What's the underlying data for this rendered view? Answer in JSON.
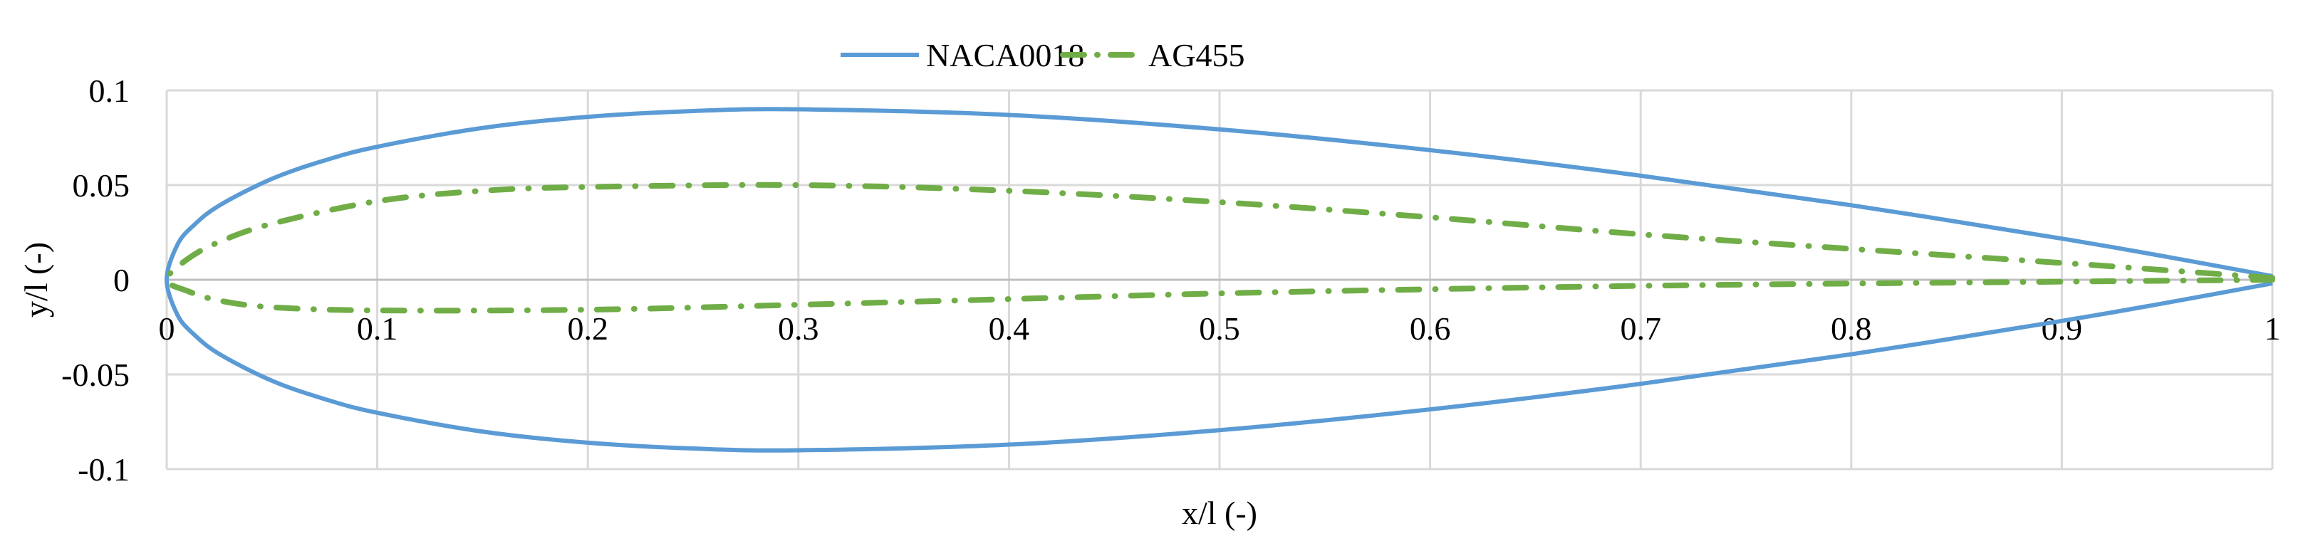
{
  "chart_data": {
    "type": "line",
    "title": "",
    "xlabel": "x/l (-)",
    "ylabel": "y/l (-)",
    "xlim": [
      0,
      1
    ],
    "ylim": [
      -0.1,
      0.1
    ],
    "xticks": [
      0,
      0.1,
      0.2,
      0.3,
      0.4,
      0.5,
      0.6,
      0.7,
      0.8,
      0.9,
      1
    ],
    "xtick_labels": [
      "0",
      "0.1",
      "0.2",
      "0.3",
      "0.4",
      "0.5",
      "0.6",
      "0.7",
      "0.8",
      "0.9",
      "1"
    ],
    "yticks": [
      0.1,
      0.05,
      0,
      -0.05,
      -0.1
    ],
    "ytick_labels": [
      "0.1",
      "0.05",
      "0",
      "-0.05",
      "-0.1"
    ],
    "grid": true,
    "legend_placement": "top-center",
    "series": [
      {
        "name": "NACA0018",
        "color": "#5B9BD5",
        "style": "solid",
        "upper": {
          "x": [
            0,
            0.005,
            0.0125,
            0.025,
            0.05,
            0.075,
            0.1,
            0.15,
            0.2,
            0.25,
            0.3,
            0.4,
            0.5,
            0.6,
            0.7,
            0.8,
            0.9,
            0.95,
            1.0
          ],
          "y": [
            0,
            0.0183,
            0.02841,
            0.03922,
            0.05332,
            0.063,
            0.07024,
            0.08018,
            0.08606,
            0.08912,
            0.09003,
            0.08705,
            0.07941,
            0.06845,
            0.05496,
            0.03935,
            0.02172,
            0.0121,
            0.00189
          ]
        },
        "lower": {
          "x": [
            0,
            0.005,
            0.0125,
            0.025,
            0.05,
            0.075,
            0.1,
            0.15,
            0.2,
            0.25,
            0.3,
            0.4,
            0.5,
            0.6,
            0.7,
            0.8,
            0.9,
            0.95,
            1.0
          ],
          "y": [
            0,
            -0.0183,
            -0.02841,
            -0.03922,
            -0.05332,
            -0.063,
            -0.07024,
            -0.08018,
            -0.08606,
            -0.08912,
            -0.09003,
            -0.08705,
            -0.07941,
            -0.06845,
            -0.05496,
            -0.03935,
            -0.02172,
            -0.0121,
            -0.00189
          ]
        }
      },
      {
        "name": "AG455",
        "color": "#70AD47",
        "style": "dash-dot",
        "upper": {
          "x": [
            0,
            0.01,
            0.025,
            0.05,
            0.1,
            0.15,
            0.2,
            0.3,
            0.4,
            0.5,
            0.6,
            0.7,
            0.8,
            0.9,
            0.95,
            1.0
          ],
          "y": [
            0,
            0.011,
            0.02,
            0.0296,
            0.0415,
            0.047,
            0.049,
            0.05,
            0.047,
            0.041,
            0.033,
            0.024,
            0.0163,
            0.0089,
            0.005,
            0.001
          ]
        },
        "lower": {
          "x": [
            0,
            0.01,
            0.025,
            0.05,
            0.1,
            0.2,
            0.3,
            0.4,
            0.5,
            0.6,
            0.7,
            0.8,
            0.9,
            1.0
          ],
          "y": [
            0,
            -0.006,
            -0.011,
            -0.0145,
            -0.0162,
            -0.0158,
            -0.0132,
            -0.0102,
            -0.0072,
            -0.005,
            -0.0032,
            -0.002,
            -0.001,
            0
          ]
        }
      }
    ]
  }
}
